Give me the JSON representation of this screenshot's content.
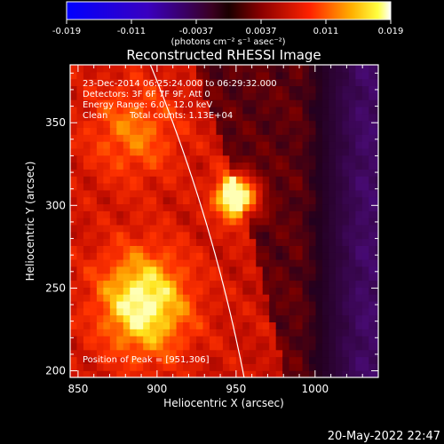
{
  "chart_data": {
    "type": "heatmap",
    "title": "Reconstructed RHESSI Image",
    "xlabel": "Heliocentric X (arcsec)",
    "ylabel": "Heliocentric Y (arcsec)",
    "xlim": [
      845,
      1040
    ],
    "ylim": [
      196,
      385
    ],
    "x_ticks": [
      850,
      900,
      950,
      1000
    ],
    "y_ticks": [
      200,
      250,
      300,
      350
    ],
    "colorbar": {
      "ticks": [
        "-0.019",
        "-0.011",
        "-0.0037",
        "0.0037",
        "0.011",
        "0.019"
      ],
      "range": [
        -0.019,
        0.019
      ],
      "unit_label": "(photons cm⁻² s⁻¹ asec⁻²)"
    },
    "peak": {
      "x": 951,
      "y": 306,
      "value": 0.019
    },
    "secondary_sources": [
      {
        "x": 885,
        "y": 345,
        "value": 0.006
      },
      {
        "x": 890,
        "y": 250,
        "value": 0.007
      },
      {
        "x": 893,
        "y": 232,
        "value": 0.007
      }
    ],
    "limb": {
      "center": [
        0,
        0
      ],
      "radius": 975
    },
    "annotations": {
      "time_range": "23-Dec-2014 06:25:24.000 to 06:29:32.000",
      "detectors": "Detectors: 3F 6F 7F 9F, Att 0",
      "energy": "Energy Range: 6.0 - 12.0 keV",
      "clean_label": "Clean",
      "total_counts": "Total counts: 1.13E+04",
      "peak_position": "Position of Peak = [951,306]"
    },
    "timestamp": "20-May-2022 22:47"
  },
  "colors": {
    "background": "#000000",
    "text": "#ffffff",
    "peak": "#ffff00",
    "negative": "#1010ff"
  }
}
